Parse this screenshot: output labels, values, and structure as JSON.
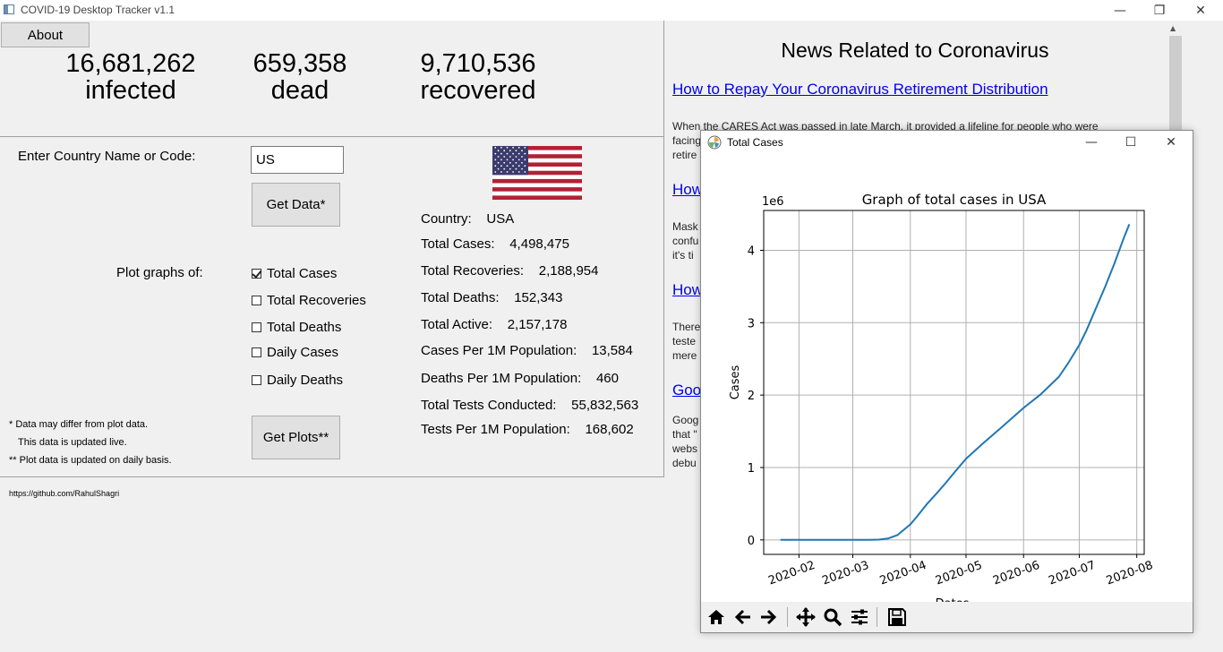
{
  "window": {
    "title": "COVID-19 Desktop Tracker v1.1",
    "minimize": "—",
    "restore": "❐",
    "close": "✕"
  },
  "about_label": "About",
  "global": [
    {
      "value": "16,681,262",
      "label": "infected"
    },
    {
      "value": "659,358",
      "label": "dead"
    },
    {
      "value": "9,710,536",
      "label": "recovered"
    }
  ],
  "country_prompt": "Enter Country Name or Code:",
  "country_value": "US",
  "get_data_label": "Get Data*",
  "plot_prompt": "Plot graphs of:",
  "plot_options": [
    {
      "label": "Total Cases",
      "checked": true
    },
    {
      "label": "Total Recoveries",
      "checked": false
    },
    {
      "label": "Total Deaths",
      "checked": false
    },
    {
      "label": "Daily Cases",
      "checked": false
    },
    {
      "label": "Daily Deaths",
      "checked": false
    }
  ],
  "get_plots_label": "Get Plots**",
  "notes": [
    "*  Data may differ from plot data.",
    "This data is updated live.",
    "** Plot data is updated on daily basis."
  ],
  "github": "https://github.com/RahulShagri",
  "stats": [
    {
      "label": "Country:",
      "value": "USA"
    },
    {
      "label": "Total Cases:",
      "value": "4,498,475"
    },
    {
      "label": "Total Recoveries:",
      "value": "2,188,954"
    },
    {
      "label": "Total Deaths:",
      "value": "152,343"
    },
    {
      "label": "Total Active:",
      "value": "2,157,178"
    },
    {
      "label": "Cases Per 1M Population:",
      "value": "13,584"
    },
    {
      "label": "Deaths Per 1M Population:",
      "value": "460"
    },
    {
      "label": "Total Tests Conducted:",
      "value": "55,832,563"
    },
    {
      "label": "Tests Per 1M Population:",
      "value": "168,602"
    }
  ],
  "news": {
    "heading": "News Related to Coronavirus",
    "items": [
      {
        "link": "How to Repay Your Coronavirus Retirement Distribution",
        "lines": [
          "When the CARES Act was passed in late March, it provided a lifeline for people who were",
          "facing",
          "retire"
        ]
      },
      {
        "link": "How",
        "lines": [
          "Mask",
          "confu",
          "it's ti"
        ]
      },
      {
        "link": "How",
        "lines": [
          "There",
          "teste",
          "mere"
        ]
      },
      {
        "link": "Goo",
        "lines": [
          "Goog",
          "that \"",
          "webs",
          "debu"
        ]
      }
    ]
  },
  "plot_window": {
    "title": "Total Cases",
    "toolbar_icons": [
      "home-icon",
      "back-arrow-icon",
      "forward-arrow-icon",
      "pan-icon",
      "zoom-icon",
      "configure-subplots-icon",
      "save-icon"
    ]
  },
  "chart_data": {
    "type": "line",
    "title": "Graph of total cases in USA",
    "xlabel": "Dates",
    "ylabel": "Cases",
    "y_scale_label": "1e6",
    "x_ticks": [
      "2020-02",
      "2020-03",
      "2020-04",
      "2020-05",
      "2020-06",
      "2020-07",
      "2020-08"
    ],
    "y_ticks": [
      "0",
      "1",
      "2",
      "3",
      "4"
    ],
    "ylim": [
      -0.2,
      4.55
    ],
    "xlim": [
      "2020-01-13",
      "2020-08-05"
    ],
    "grid": true,
    "color": "#1f77b4",
    "series": [
      {
        "x": [
          "2020-01-22",
          "2020-02-01",
          "2020-02-15",
          "2020-03-01",
          "2020-03-10",
          "2020-03-15",
          "2020-03-20",
          "2020-03-25",
          "2020-04-01",
          "2020-04-05",
          "2020-04-10",
          "2020-04-15",
          "2020-04-20",
          "2020-04-25",
          "2020-05-01",
          "2020-05-10",
          "2020-05-20",
          "2020-06-01",
          "2020-06-10",
          "2020-06-20",
          "2020-06-25",
          "2020-07-01",
          "2020-07-05",
          "2020-07-10",
          "2020-07-15",
          "2020-07-20",
          "2020-07-25",
          "2020-07-28"
        ],
        "y": [
          0,
          0,
          0,
          0,
          0.001,
          0.004,
          0.019,
          0.066,
          0.214,
          0.337,
          0.496,
          0.637,
          0.785,
          0.939,
          1.121,
          1.329,
          1.552,
          1.822,
          2.005,
          2.25,
          2.44,
          2.69,
          2.9,
          3.2,
          3.5,
          3.82,
          4.17,
          4.36
        ]
      }
    ]
  }
}
